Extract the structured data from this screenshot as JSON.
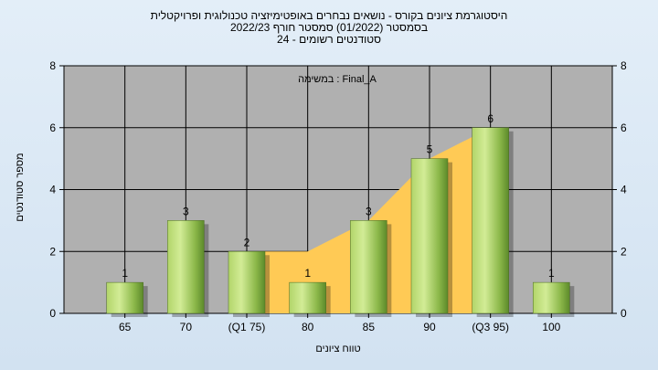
{
  "title_lines": [
    "היסטוגרמת ציונים בקורס - נושאים נבחרים באופטימיזציה טכנולוגית ופרויקטלית",
    "בסמסטר  (01/2022)  סמסטר חורף 2022/23",
    "סטודנטים רשומים - 24"
  ],
  "chart_data": {
    "type": "bar",
    "annotation": "במשימה : Final_A",
    "categories": [
      "65",
      "70",
      "(Q1 75)",
      "80",
      "85",
      "90",
      "(Q3 95)",
      "100"
    ],
    "values": [
      1,
      3,
      2,
      1,
      3,
      5,
      6,
      1
    ],
    "area_values": [
      null,
      null,
      2,
      2,
      3,
      5,
      6,
      null
    ],
    "xlabel": "טווח ציונים",
    "ylabel": "מספר סטודנטים",
    "ylim": [
      0,
      8
    ],
    "yticks": [
      0,
      2,
      4,
      6,
      8
    ],
    "grid": true,
    "colors": {
      "bar_light": "#d2ec96",
      "bar_dark": "#5c8a2a",
      "area": "#ffca55",
      "plot_bg": "#b0b0b0",
      "frame": "#000000"
    }
  }
}
